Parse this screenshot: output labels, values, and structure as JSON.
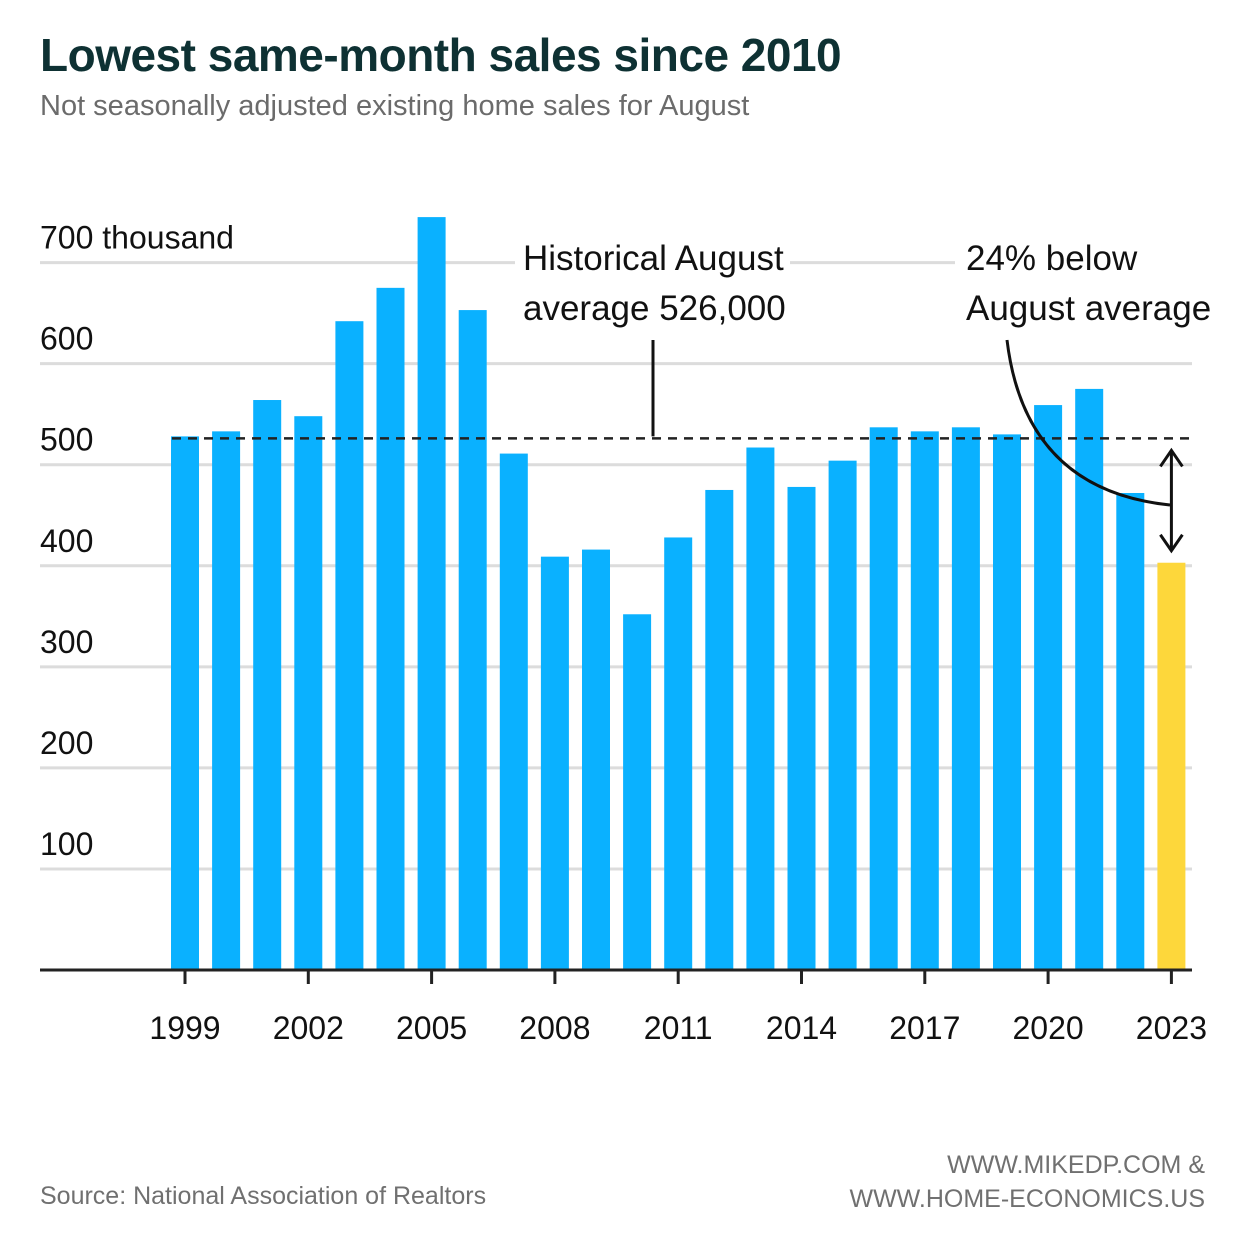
{
  "title": "Lowest same-month sales since 2010",
  "subtitle": "Not seasonally adjusted existing home sales for August",
  "colors": {
    "bar": "#0ab1ff",
    "highlight": "#fdd73b",
    "grid": "#dcdcdc",
    "axis": "#222222",
    "average_line": "#222222"
  },
  "chart_data": {
    "type": "bar",
    "title": "Lowest same-month sales since 2010",
    "subtitle": "Not seasonally adjusted existing home sales for August",
    "ylabel": "thousand",
    "ylim": [
      0,
      750
    ],
    "yticks": [
      {
        "value": 100,
        "label": "100"
      },
      {
        "value": 200,
        "label": "200"
      },
      {
        "value": 300,
        "label": "300"
      },
      {
        "value": 400,
        "label": "400"
      },
      {
        "value": 500,
        "label": "500"
      },
      {
        "value": 600,
        "label": "600"
      },
      {
        "value": 700,
        "label": "700 thousand"
      }
    ],
    "xticks": [
      "1999",
      "2002",
      "2005",
      "2008",
      "2011",
      "2014",
      "2017",
      "2020",
      "2023"
    ],
    "categories": [
      "1999",
      "2000",
      "2001",
      "2002",
      "2003",
      "2004",
      "2005",
      "2006",
      "2007",
      "2008",
      "2009",
      "2010",
      "2011",
      "2012",
      "2013",
      "2014",
      "2015",
      "2016",
      "2017",
      "2018",
      "2019",
      "2020",
      "2021",
      "2022",
      "2023"
    ],
    "values": [
      528,
      533,
      564,
      548,
      642,
      675,
      745,
      653,
      511,
      409,
      416,
      352,
      428,
      475,
      517,
      478,
      504,
      537,
      533,
      537,
      530,
      559,
      575,
      472,
      403
    ],
    "highlight_category": "2023",
    "reference_line": {
      "value": 526,
      "label_lines": [
        "Historical August",
        "average 526,000"
      ]
    },
    "annotation": {
      "lines": [
        "24% below",
        "August average"
      ]
    },
    "grid": true
  },
  "footer": {
    "source": "Source: National Association of Realtors",
    "credit_lines": [
      "WWW.MIKEDP.COM &",
      "WWW.HOME-ECONOMICS.US"
    ]
  }
}
